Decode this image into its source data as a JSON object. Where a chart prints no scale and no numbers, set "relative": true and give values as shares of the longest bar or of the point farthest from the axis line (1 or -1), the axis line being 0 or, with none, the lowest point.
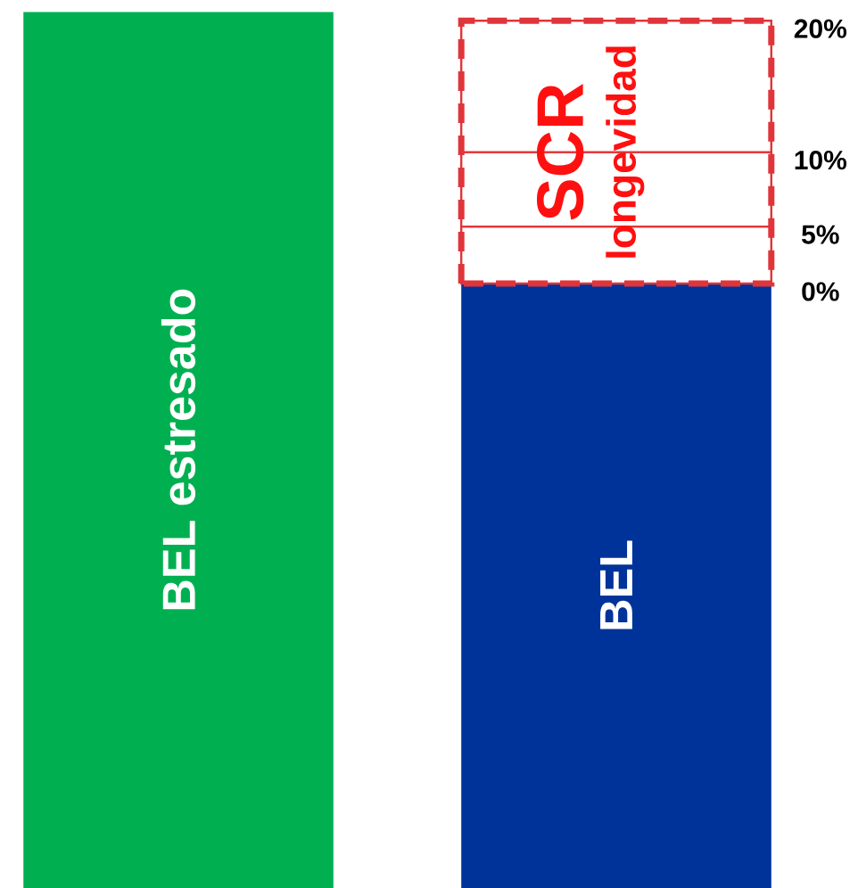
{
  "chart_data": {
    "type": "bar",
    "stacked": true,
    "relative": true,
    "categories": [
      null,
      null
    ],
    "series": [
      {
        "name": "BEL estresado",
        "color": "#00b050",
        "values": [
          1,
          null
        ]
      },
      {
        "name": "BEL",
        "color": "#003399",
        "values": [
          null,
          0.69
        ]
      },
      {
        "color": "#ffffff",
        "line_style": "dashed",
        "values": [
          null,
          0.065
        ]
      },
      {
        "color": "#ffffff",
        "line_style": "dashed",
        "values": [
          null,
          0.085
        ]
      },
      {
        "color": "#ffffff",
        "line_style": "dashed",
        "values": [
          null,
          0.15
        ]
      }
    ],
    "annotations": [
      "SCR",
      "longevidad",
      "20%",
      "10%",
      "5%",
      "0%"
    ]
  }
}
